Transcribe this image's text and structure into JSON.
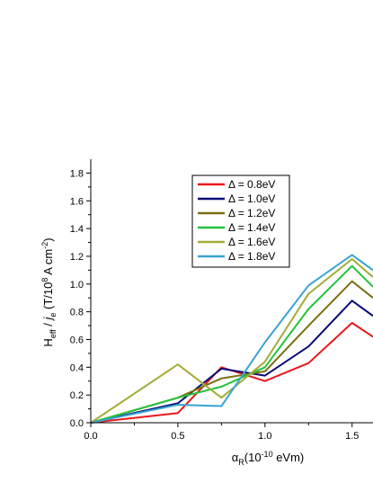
{
  "chart_data": {
    "type": "line",
    "xlabel_parts": {
      "base": "α",
      "sub": "R",
      "rest": "(10",
      "sup": "-10",
      "tail": " eVm)"
    },
    "ylabel_parts": {
      "a": "H",
      "a_sub": "eff",
      "b": " / ",
      "c": "j",
      "c_sub": "e",
      "d": " (T/10",
      "d_sup": "8",
      "e": " A cm",
      "e_sup": "-2",
      "f": ")"
    },
    "xlim": [
      0.0,
      1.62
    ],
    "ylim": [
      0.0,
      1.9
    ],
    "x_ticks": [
      "0.0",
      "0.5",
      "1.0",
      "1.5"
    ],
    "y_ticks": [
      "0.0",
      "0.2",
      "0.4",
      "0.6",
      "0.8",
      "1.0",
      "1.2",
      "1.4",
      "1.6",
      "1.8"
    ],
    "legend_position": "top-center",
    "series": [
      {
        "name": "Δ = 0.8eV",
        "color": "#e8191c",
        "x": [
          0.0,
          0.5,
          0.75,
          1.0,
          1.25,
          1.5,
          1.62
        ],
        "y": [
          0.0,
          0.07,
          0.4,
          0.3,
          0.43,
          0.72,
          0.62
        ]
      },
      {
        "name": "Δ = 1.0eV",
        "color": "#0a0a78",
        "x": [
          0.0,
          0.5,
          0.75,
          1.0,
          1.25,
          1.5,
          1.62
        ],
        "y": [
          0.0,
          0.14,
          0.39,
          0.34,
          0.55,
          0.88,
          0.77
        ]
      },
      {
        "name": "Δ = 1.2eV",
        "color": "#7a7010",
        "x": [
          0.0,
          0.5,
          0.75,
          1.0,
          1.25,
          1.5,
          1.62
        ],
        "y": [
          0.0,
          0.18,
          0.32,
          0.37,
          0.7,
          1.02,
          0.9
        ]
      },
      {
        "name": "Δ = 1.4eV",
        "color": "#22c33a",
        "x": [
          0.0,
          0.5,
          0.75,
          1.0,
          1.25,
          1.5,
          1.62
        ],
        "y": [
          0.0,
          0.18,
          0.26,
          0.4,
          0.82,
          1.13,
          0.98
        ]
      },
      {
        "name": "Δ = 1.6eV",
        "color": "#a3ac38",
        "x": [
          0.0,
          0.5,
          0.75,
          1.0,
          1.25,
          1.5,
          1.62
        ],
        "y": [
          0.0,
          0.42,
          0.18,
          0.44,
          0.93,
          1.18,
          1.05
        ]
      },
      {
        "name": "Δ = 1.8eV",
        "color": "#3aa3d0",
        "x": [
          0.0,
          0.5,
          0.75,
          1.0,
          1.25,
          1.5,
          1.62
        ],
        "y": [
          0.0,
          0.13,
          0.12,
          0.58,
          0.99,
          1.21,
          1.1
        ]
      }
    ]
  }
}
